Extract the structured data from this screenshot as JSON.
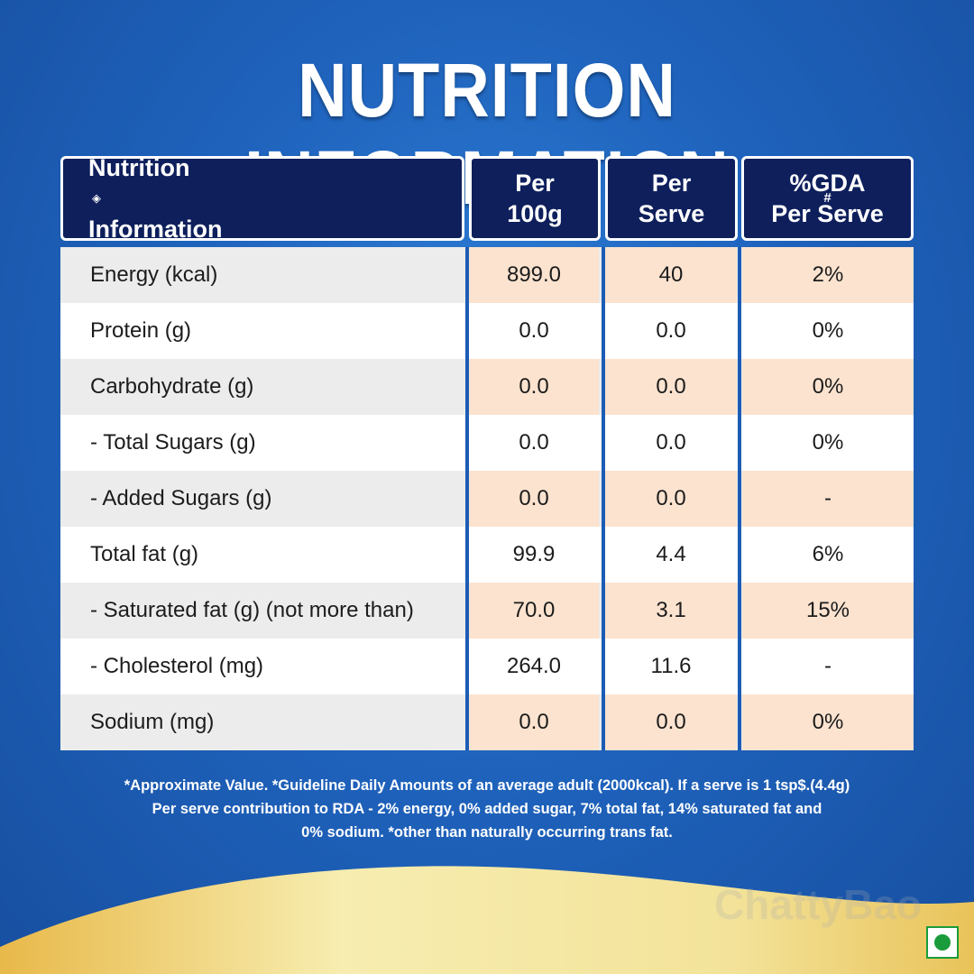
{
  "title": "NUTRITION INFORMATION",
  "header": {
    "col0_line1": "Nutrition",
    "col0_line2": "Information",
    "col0_mark": "◈",
    "col1_line1": "Per",
    "col1_line2": "100g",
    "col2_line1": "Per",
    "col2_line2": "Serve",
    "col3_line1": "%GDA",
    "col3_sup": "#",
    "col3_line2": "Per Serve"
  },
  "rows": [
    {
      "name": "Energy (kcal)",
      "per100g": "899.0",
      "perServe": "40",
      "gda": "2%"
    },
    {
      "name": "Protein (g)",
      "per100g": "0.0",
      "perServe": "0.0",
      "gda": "0%"
    },
    {
      "name": "Carbohydrate (g)",
      "per100g": "0.0",
      "perServe": "0.0",
      "gda": "0%"
    },
    {
      "name": "- Total Sugars (g)",
      "per100g": "0.0",
      "perServe": "0.0",
      "gda": "0%"
    },
    {
      "name": "- Added Sugars (g)",
      "per100g": "0.0",
      "perServe": "0.0",
      "gda": "-"
    },
    {
      "name": "Total fat (g)",
      "per100g": "99.9",
      "perServe": "4.4",
      "gda": "6%"
    },
    {
      "name": "- Saturated fat (g) (not more than)",
      "per100g": "70.0",
      "perServe": "3.1",
      "gda": "15%"
    },
    {
      "name": "- Cholesterol (mg)",
      "per100g": "264.0",
      "perServe": "11.6",
      "gda": "-"
    },
    {
      "name": "Sodium (mg)",
      "per100g": "0.0",
      "perServe": "0.0",
      "gda": "0%"
    }
  ],
  "footnote": {
    "line1": "*Approximate Value. *Guideline Daily Amounts of an average adult (2000kcal). If a serve is 1 tsp$.(4.4g)",
    "line2": "Per serve contribution to RDA - 2% energy, 0% added sugar, 7% total fat, 14% saturated fat and",
    "line3": "0% sodium. *other than naturally occurring trans fat."
  },
  "watermark": "ChattyBao",
  "colors": {
    "background_blue": "#1f63bd",
    "header_navy": "#0e1f5c",
    "row_highlight_peach": "#fbe3cf",
    "row_highlight_grey": "#ececec",
    "wave_cream": "#f5e9a8",
    "veg_green": "#1a9b3c"
  },
  "icons": {
    "veg_mark": "veg-symbol-icon"
  }
}
